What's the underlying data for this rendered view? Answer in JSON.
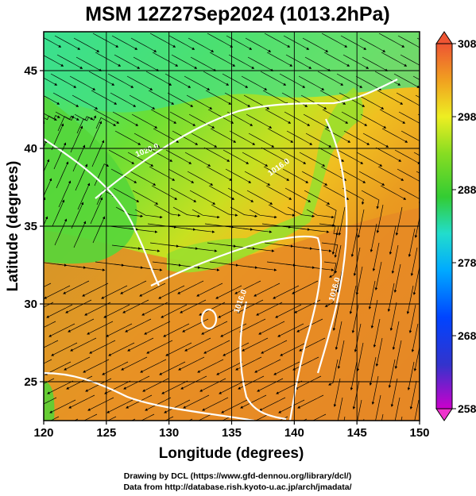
{
  "title": "MSM 12Z27Sep2024 (1013.2hPa)",
  "xlabel": "Longitude (degrees)",
  "ylabel": "Latitude  (degrees)",
  "x_ticks": [
    "120",
    "125",
    "130",
    "135",
    "140",
    "145",
    "150"
  ],
  "y_ticks": [
    "25",
    "30",
    "35",
    "40",
    "45"
  ],
  "colorbar_ticks": [
    "308",
    "298",
    "288",
    "278",
    "268",
    "258"
  ],
  "contour_labels": [
    "1020.0",
    "1016.0",
    "1016.0",
    "1016.0"
  ],
  "credits": {
    "line1": "Drawing by DCL (https://www.gfd-dennou.org/library/dcl/)",
    "line2": "Data from http://database.rish.kyoto-u.ac.jp/arch/jmadata/"
  },
  "map": {
    "lon_range": [
      120,
      150
    ],
    "lat_range": [
      22.5,
      47.5
    ],
    "variable_range": [
      258,
      308
    ],
    "land_color": "#66dd33",
    "north_sea_color": "#33dd88",
    "south_sea_color": "#dd7722",
    "contour_color": "#ffffff",
    "streamline_color": "#000000"
  }
}
